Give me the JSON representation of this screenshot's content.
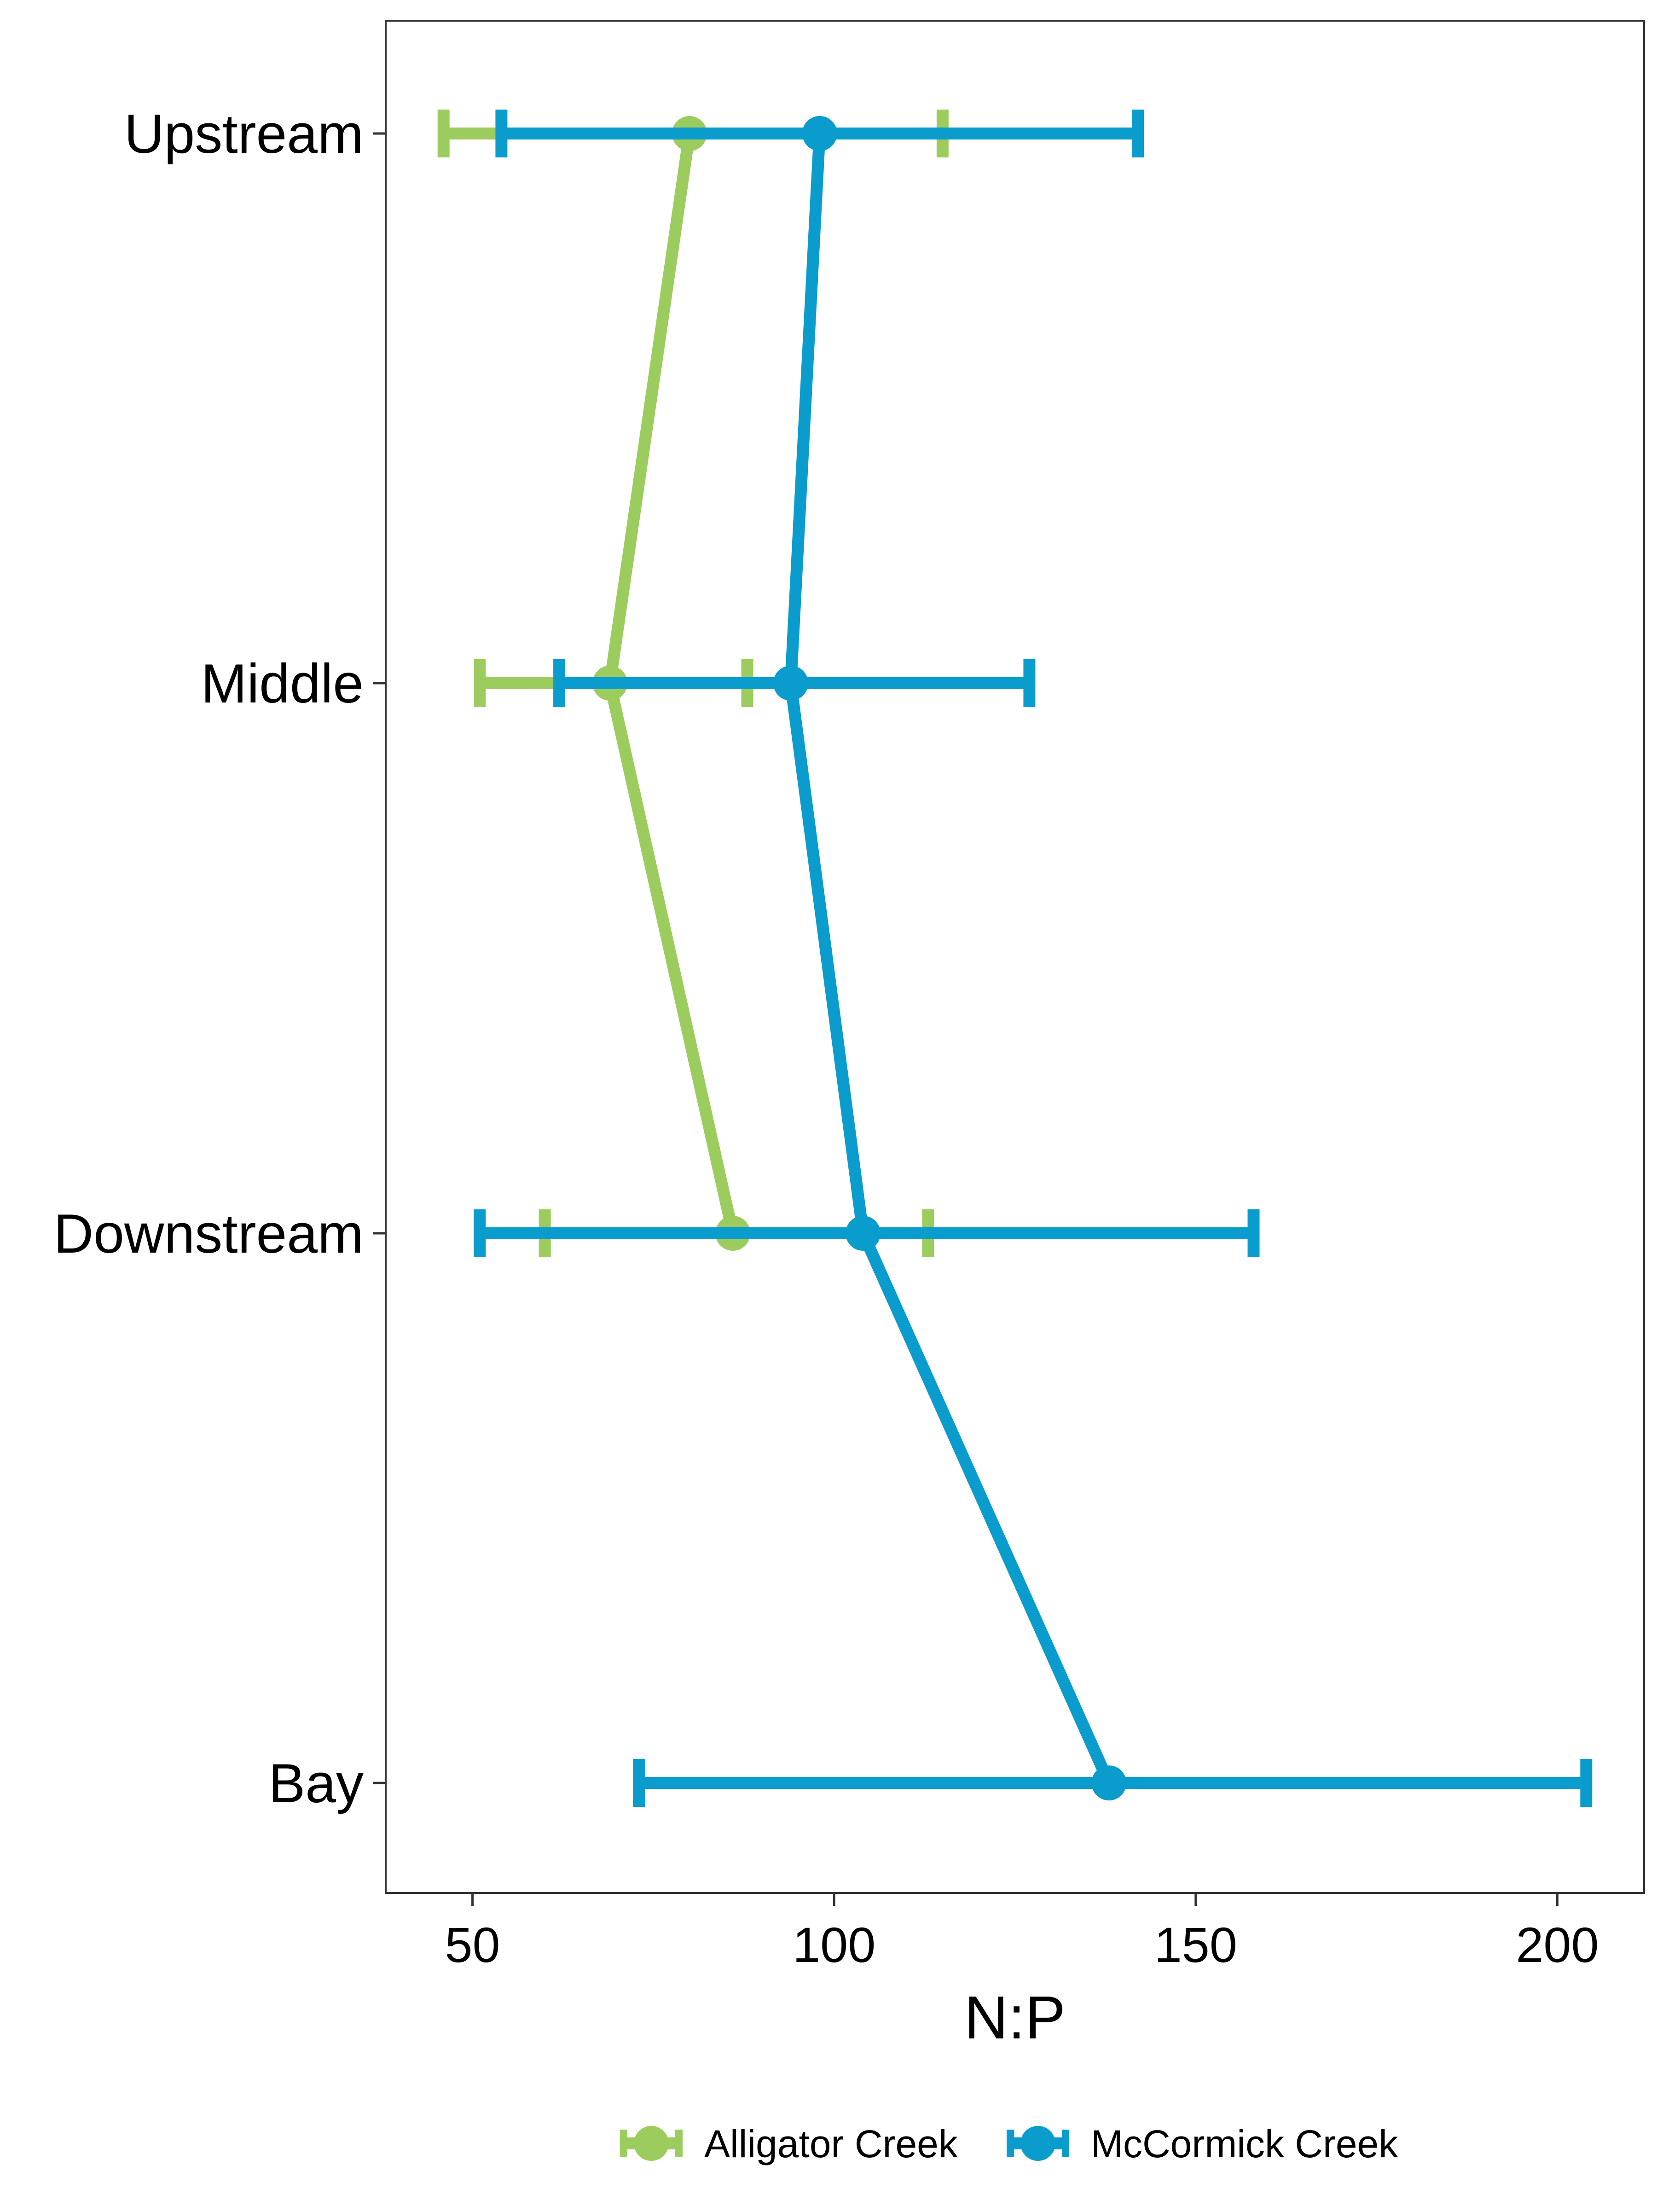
{
  "chart_data": {
    "type": "line",
    "orientation": "horizontal",
    "xlabel": "N:P",
    "ylabel": "",
    "xlim": [
      38,
      212
    ],
    "xticks": [
      50,
      100,
      150,
      200
    ],
    "categories": [
      "Upstream",
      "Middle",
      "Downstream",
      "Bay"
    ],
    "grid": false,
    "error_bars": true,
    "legend_position": "bottom",
    "series": [
      {
        "name": "Alligator Creek",
        "color": "#9dcc5e",
        "points": [
          {
            "category": "Upstream",
            "value": 80,
            "lower": 46,
            "upper": 115
          },
          {
            "category": "Middle",
            "value": 69,
            "lower": 51,
            "upper": 88
          },
          {
            "category": "Downstream",
            "value": 86,
            "lower": 60,
            "upper": 113
          }
        ]
      },
      {
        "name": "McCormick Creek",
        "color": "#0a9ccc",
        "points": [
          {
            "category": "Upstream",
            "value": 98,
            "lower": 54,
            "upper": 142
          },
          {
            "category": "Middle",
            "value": 94,
            "lower": 62,
            "upper": 127
          },
          {
            "category": "Downstream",
            "value": 104,
            "lower": 51,
            "upper": 158
          },
          {
            "category": "Bay",
            "value": 138,
            "lower": 73,
            "upper": 204
          }
        ]
      }
    ]
  }
}
